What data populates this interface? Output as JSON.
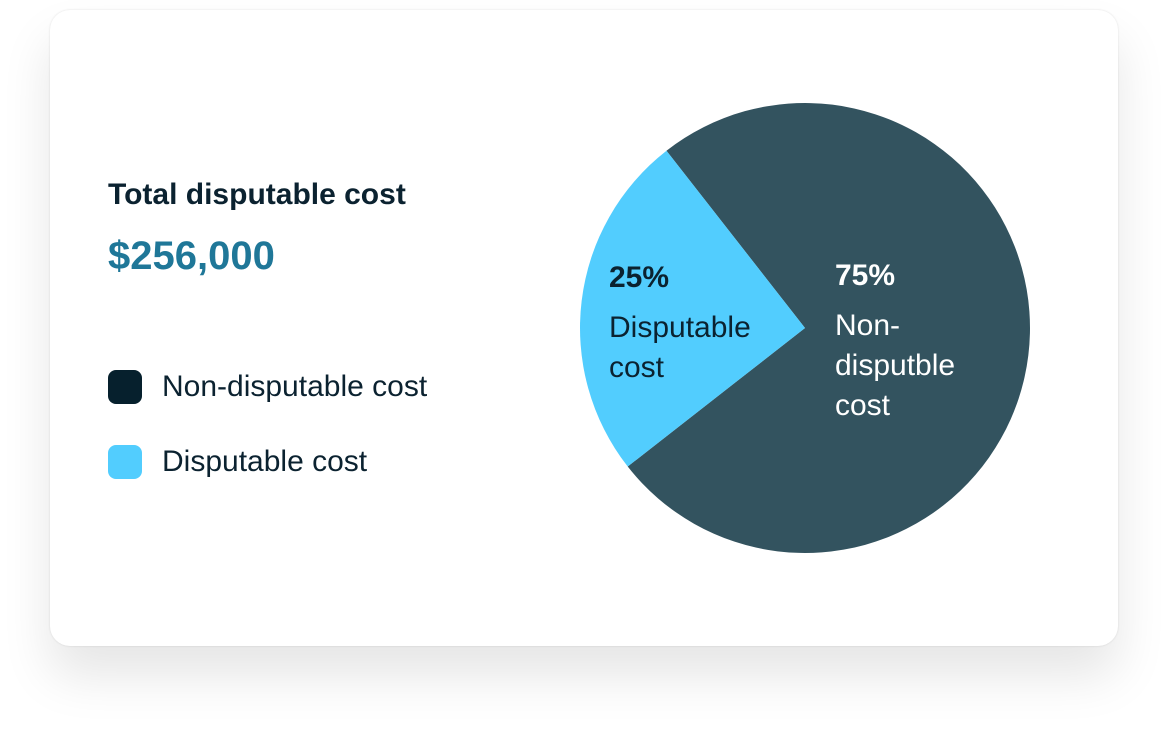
{
  "chart_data": {
    "type": "pie",
    "title": "Total disputable cost",
    "subtitle": "$256,000",
    "categories": [
      "Non-disputable cost",
      "Disputable cost"
    ],
    "slice_labels": [
      "Non-disputble cost",
      "Disputable cost"
    ],
    "values": [
      75,
      25
    ],
    "value_labels": [
      "75%",
      "25%"
    ],
    "colors": [
      "#33535f",
      "#52cdfe"
    ],
    "legend_colors": [
      "#06202d",
      "#52cdfe"
    ],
    "label_colors": [
      "#ffffff",
      "#0b2230"
    ]
  }
}
